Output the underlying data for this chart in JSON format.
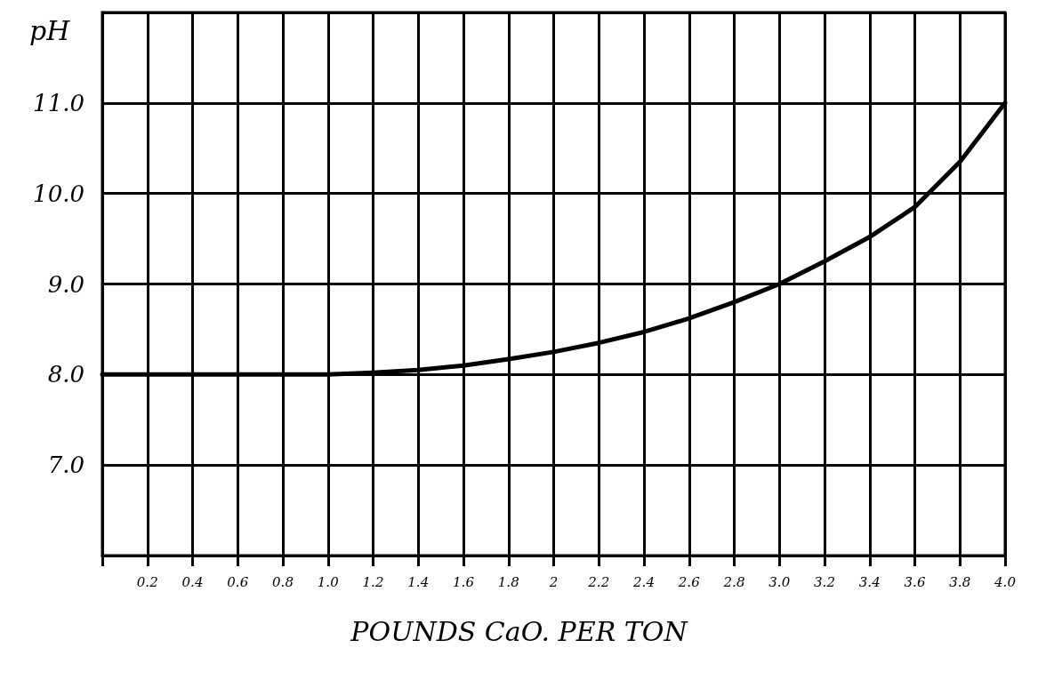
{
  "chart_data": {
    "type": "line",
    "ylabel": "pH",
    "xlabel": "POUNDS CaO. PER TON",
    "x": [
      0,
      0.2,
      0.4,
      0.6,
      0.8,
      1.0,
      1.2,
      1.4,
      1.6,
      1.8,
      2.0,
      2.2,
      2.4,
      2.6,
      2.8,
      3.0,
      3.2,
      3.4,
      3.6,
      3.8,
      4.0
    ],
    "series": [
      {
        "color": "#000000",
        "values": [
          8.0,
          8.0,
          8.0,
          8.0,
          8.0,
          8.0,
          8.02,
          8.05,
          8.1,
          8.17,
          8.25,
          8.35,
          8.47,
          8.62,
          8.8,
          9.0,
          9.25,
          9.52,
          9.85,
          10.35,
          11.0
        ]
      }
    ],
    "xlim": [
      0,
      4.0
    ],
    "xticks": [
      {
        "value": 0,
        "label": null
      },
      {
        "value": 0.2,
        "label": "0.2"
      },
      {
        "value": 0.4,
        "label": "0.4"
      },
      {
        "value": 0.6,
        "label": "0.6"
      },
      {
        "value": 0.8,
        "label": "0.8"
      },
      {
        "value": 1.0,
        "label": "1.0"
      },
      {
        "value": 1.2,
        "label": "1.2"
      },
      {
        "value": 1.4,
        "label": "1.4"
      },
      {
        "value": 1.6,
        "label": "1.6"
      },
      {
        "value": 1.8,
        "label": "1.8"
      },
      2,
      {
        "value": 2.2,
        "label": "2.2"
      },
      {
        "value": 2.4,
        "label": "2.4"
      },
      {
        "value": 2.6,
        "label": "2.6"
      },
      {
        "value": 2.8,
        "label": "2.8"
      },
      {
        "value": 3.0,
        "label": "3.0"
      },
      {
        "value": 3.2,
        "label": "3.2"
      },
      {
        "value": 3.4,
        "label": "3.4"
      },
      {
        "value": 3.6,
        "label": "3.6"
      },
      {
        "value": 3.8,
        "label": "3.8"
      },
      {
        "value": 4.0,
        "label": "4.0"
      }
    ],
    "ylim": [
      6,
      12
    ],
    "yticks": [
      {
        "value": 7,
        "label": "7.0"
      },
      {
        "value": 8,
        "label": "8.0"
      },
      {
        "value": 9,
        "label": "9.0"
      },
      {
        "value": 10,
        "label": "10.0"
      },
      {
        "value": 11,
        "label": "11.0"
      }
    ],
    "grid": true,
    "marker": "none",
    "line_style": "solid"
  }
}
